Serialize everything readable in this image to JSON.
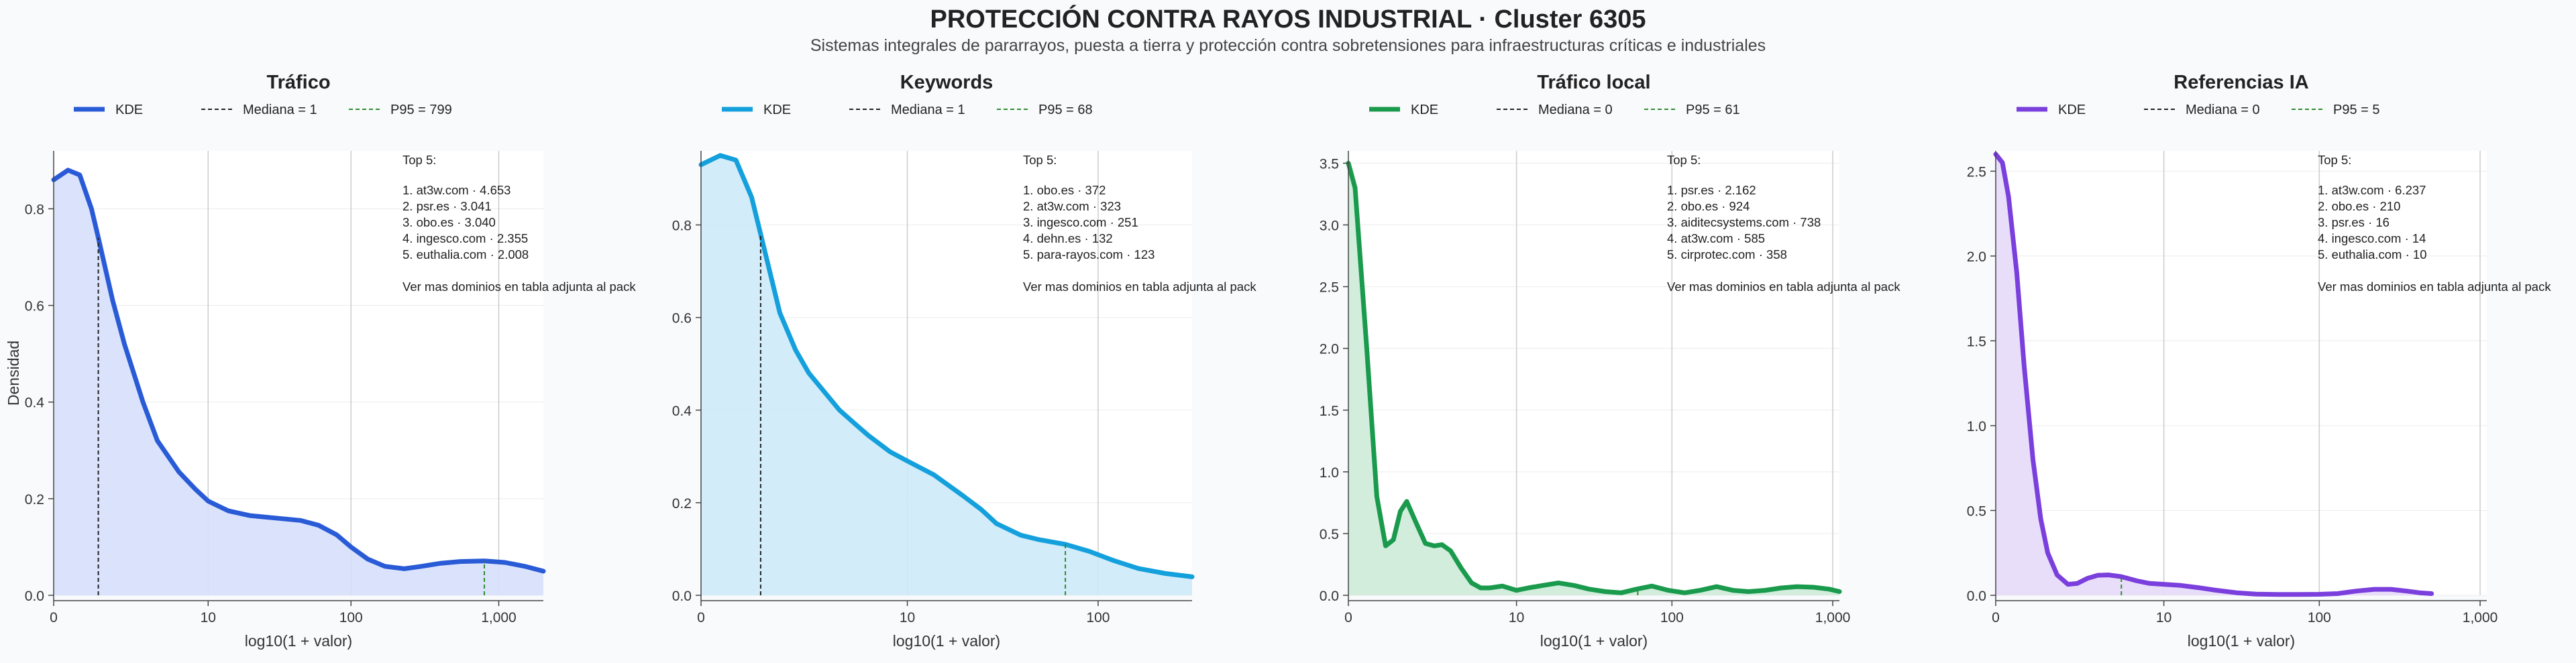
{
  "header": {
    "title": "PROTECCIÓN CONTRA RAYOS INDUSTRIAL · Cluster 6305",
    "subtitle": "Sistemas integrales de pararrayos, puesta a tierra y protección contra sobretensiones para infraestructuras críticas e industriales"
  },
  "colors": {
    "grid": "#cccccc",
    "median_line": "#222222",
    "p95_line": "#2e8b2e"
  },
  "chart_data": [
    {
      "type": "area",
      "title": "Tráfico",
      "color": "#2a5bd7",
      "fill": "#d6e0fb",
      "xlabel": "log10(1 + valor)",
      "ylabel": "Densidad",
      "xscale": "log1p",
      "xlim": [
        0,
        2000
      ],
      "ylim": [
        0,
        0.92
      ],
      "xticks": [
        0,
        10,
        100,
        1000
      ],
      "xtick_labels": [
        "0",
        "10",
        "100",
        "1,000"
      ],
      "yticks": [
        0,
        0.2,
        0.4,
        0.6,
        0.8
      ],
      "ytick_labels": [
        "0.0",
        "0.2",
        "0.4",
        "0.6",
        "0.8"
      ],
      "legend": [
        "KDE",
        "Mediana = 1",
        "P95 = 799"
      ],
      "median": 1,
      "p95": 799,
      "x": [
        0,
        0.25,
        0.5,
        0.8,
        1,
        1.5,
        2,
        3,
        4,
        6,
        8,
        10,
        14,
        20,
        30,
        45,
        60,
        80,
        100,
        130,
        170,
        230,
        300,
        400,
        550,
        800,
        1100,
        1500,
        2000
      ],
      "y": [
        0.86,
        0.88,
        0.87,
        0.8,
        0.74,
        0.61,
        0.52,
        0.4,
        0.32,
        0.255,
        0.22,
        0.195,
        0.175,
        0.165,
        0.16,
        0.155,
        0.145,
        0.125,
        0.1,
        0.075,
        0.06,
        0.055,
        0.06,
        0.066,
        0.07,
        0.071,
        0.068,
        0.06,
        0.05
      ],
      "annotation": {
        "heading": "Top 5:",
        "items": [
          "1. at3w.com · 4.653",
          "2. psr.es · 3.041",
          "3. obo.es · 3.040",
          "4. ingesco.com · 2.355",
          "5. euthalia.com · 2.008"
        ],
        "footer": "Ver mas dominios en tabla adjunta al pack"
      }
    },
    {
      "type": "area",
      "title": "Keywords",
      "color": "#14a0dc",
      "fill": "#cdeaf8",
      "xlabel": "log10(1 + valor)",
      "ylabel": "",
      "xscale": "log1p",
      "xlim": [
        0,
        300
      ],
      "ylim": [
        0,
        0.96
      ],
      "xticks": [
        0,
        10,
        100
      ],
      "xtick_labels": [
        "0",
        "10",
        "100"
      ],
      "yticks": [
        0,
        0.2,
        0.4,
        0.6,
        0.8
      ],
      "ytick_labels": [
        "0.0",
        "0.2",
        "0.4",
        "0.6",
        "0.8"
      ],
      "legend": [
        "KDE",
        "Mediana = 1",
        "P95 = 68"
      ],
      "median": 1,
      "p95": 68,
      "x": [
        0,
        0.25,
        0.5,
        0.8,
        1,
        1.5,
        2,
        2.5,
        3,
        4,
        5,
        6,
        8,
        10,
        14,
        20,
        25,
        30,
        40,
        50,
        68,
        90,
        120,
        160,
        220,
        300
      ],
      "y": [
        0.93,
        0.95,
        0.94,
        0.86,
        0.78,
        0.61,
        0.53,
        0.48,
        0.45,
        0.4,
        0.37,
        0.345,
        0.31,
        0.29,
        0.26,
        0.215,
        0.185,
        0.155,
        0.13,
        0.12,
        0.11,
        0.095,
        0.075,
        0.058,
        0.047,
        0.04
      ],
      "annotation": {
        "heading": "Top 5:",
        "items": [
          "1. obo.es · 372",
          "2. at3w.com · 323",
          "3. ingesco.com · 251",
          "4. dehn.es · 132",
          "5. para-rayos.com · 123"
        ],
        "footer": "Ver mas dominios en tabla adjunta al pack"
      }
    },
    {
      "type": "area",
      "title": "Tráfico local",
      "color": "#1a9a4c",
      "fill": "#cdebd8",
      "xlabel": "log10(1 + valor)",
      "ylabel": "",
      "xscale": "log1p",
      "xlim": [
        0,
        1100
      ],
      "ylim": [
        0,
        3.6
      ],
      "xticks": [
        0,
        10,
        100,
        1000
      ],
      "xtick_labels": [
        "0",
        "10",
        "100",
        "1,000"
      ],
      "yticks": [
        0,
        0.5,
        1.0,
        1.5,
        2.0,
        2.5,
        3.0,
        3.5
      ],
      "ytick_labels": [
        "0.0",
        "0.5",
        "1.0",
        "1.5",
        "2.0",
        "2.5",
        "3.0",
        "3.5"
      ],
      "legend": [
        "KDE",
        "Mediana = 0",
        "P95 = 61"
      ],
      "median": 0,
      "p95": 61,
      "x": [
        0,
        0.1,
        0.3,
        0.5,
        0.7,
        0.9,
        1.1,
        1.3,
        1.6,
        2.0,
        2.4,
        2.8,
        3.3,
        4.0,
        4.8,
        5.6,
        6.5,
        8,
        10,
        12,
        15,
        19,
        24,
        30,
        38,
        48,
        60,
        75,
        95,
        120,
        150,
        190,
        240,
        300,
        380,
        480,
        600,
        760,
        950,
        1100
      ],
      "y": [
        3.5,
        3.3,
        2.0,
        0.8,
        0.4,
        0.45,
        0.68,
        0.76,
        0.6,
        0.42,
        0.4,
        0.41,
        0.36,
        0.22,
        0.1,
        0.06,
        0.06,
        0.075,
        0.04,
        0.06,
        0.08,
        0.1,
        0.08,
        0.05,
        0.03,
        0.02,
        0.05,
        0.075,
        0.04,
        0.02,
        0.04,
        0.07,
        0.04,
        0.03,
        0.04,
        0.06,
        0.07,
        0.065,
        0.05,
        0.03
      ],
      "annotation": {
        "heading": "Top 5:",
        "items": [
          "1. psr.es · 2.162",
          "2. obo.es · 924",
          "3. aiditecsystems.com · 738",
          "4. at3w.com · 585",
          "5. cirprotec.com · 358"
        ],
        "footer": "Ver mas dominios en tabla adjunta al pack"
      }
    },
    {
      "type": "area",
      "title": "Referencias IA",
      "color": "#7a3fdc",
      "fill": "#e5dafa",
      "xlabel": "log10(1 + valor)",
      "ylabel": "",
      "xscale": "log1p",
      "xlim": [
        0,
        1100
      ],
      "ylim": [
        0,
        2.62
      ],
      "xticks": [
        0,
        10,
        100,
        1000
      ],
      "xtick_labels": [
        "0",
        "10",
        "100",
        "1,000"
      ],
      "yticks": [
        0,
        0.5,
        1.0,
        1.5,
        2.0,
        2.5
      ],
      "ytick_labels": [
        "0.0",
        "0.5",
        "1.0",
        "1.5",
        "2.0",
        "2.5"
      ],
      "legend": [
        "KDE",
        "Mediana = 0",
        "P95 = 5"
      ],
      "median": 0,
      "p95": 5,
      "x": [
        0,
        0.1,
        0.2,
        0.35,
        0.5,
        0.7,
        0.9,
        1.1,
        1.4,
        1.8,
        2.2,
        2.7,
        3.3,
        4,
        5,
        6.5,
        8,
        10,
        13,
        17,
        22,
        30,
        40,
        55,
        75,
        100,
        130,
        170,
        220,
        280,
        350,
        420,
        500
      ],
      "y": [
        2.6,
        2.55,
        2.35,
        1.9,
        1.35,
        0.8,
        0.45,
        0.25,
        0.12,
        0.065,
        0.07,
        0.1,
        0.118,
        0.12,
        0.11,
        0.085,
        0.07,
        0.065,
        0.058,
        0.045,
        0.03,
        0.015,
        0.007,
        0.005,
        0.005,
        0.006,
        0.01,
        0.025,
        0.035,
        0.035,
        0.025,
        0.015,
        0.01
      ],
      "annotation": {
        "heading": "Top 5:",
        "items": [
          "1. at3w.com · 6.237",
          "2. obo.es · 210",
          "3. psr.es · 16",
          "4. ingesco.com · 14",
          "5. euthalia.com · 10"
        ],
        "footer": "Ver mas dominios en tabla adjunta al pack"
      }
    }
  ]
}
